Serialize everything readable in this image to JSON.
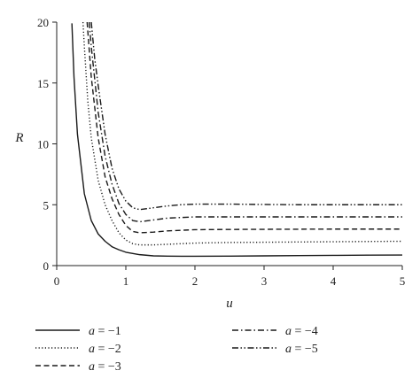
{
  "chart_data": {
    "type": "line",
    "xlabel": "u",
    "ylabel": "R",
    "xlim": [
      0,
      5
    ],
    "ylim": [
      0,
      20
    ],
    "xticks": [
      "0",
      "1",
      "2",
      "3",
      "4",
      "5"
    ],
    "yticks": [
      "0",
      "5",
      "10",
      "15",
      "20"
    ],
    "grid": false,
    "legend_position": "bottom",
    "series": [
      {
        "name": "a = −1",
        "dash": "solid",
        "x": [
          0.22,
          0.25,
          0.3,
          0.4,
          0.5,
          0.6,
          0.7,
          0.8,
          0.9,
          1.0,
          1.2,
          1.4,
          1.6,
          1.8,
          2.0,
          2.5,
          3.0,
          3.5,
          4.0,
          4.5,
          5.0
        ],
        "y": [
          19.9,
          15.5,
          10.8,
          5.9,
          3.7,
          2.6,
          2.0,
          1.55,
          1.3,
          1.1,
          0.9,
          0.8,
          0.78,
          0.77,
          0.77,
          0.78,
          0.8,
          0.82,
          0.84,
          0.86,
          0.87
        ]
      },
      {
        "name": "a = −2",
        "dash": "dotted",
        "x": [
          0.38,
          0.4,
          0.45,
          0.5,
          0.6,
          0.7,
          0.8,
          0.9,
          1.0,
          1.1,
          1.2,
          1.4,
          1.6,
          1.8,
          2.0,
          2.5,
          3.0,
          3.5,
          4.0,
          4.5,
          5.0
        ],
        "y": [
          20.0,
          18.0,
          13.5,
          10.5,
          7.0,
          5.0,
          3.7,
          2.7,
          2.1,
          1.8,
          1.7,
          1.7,
          1.75,
          1.8,
          1.85,
          1.9,
          1.92,
          1.94,
          1.96,
          1.98,
          2.0
        ]
      },
      {
        "name": "a = −3",
        "dash": "dashed",
        "x": [
          0.44,
          0.5,
          0.6,
          0.7,
          0.8,
          0.9,
          1.0,
          1.1,
          1.2,
          1.4,
          1.6,
          1.8,
          2.0,
          2.5,
          3.0,
          3.5,
          4.0,
          4.5,
          5.0
        ],
        "y": [
          20.0,
          15.5,
          10.5,
          7.3,
          5.5,
          4.2,
          3.3,
          2.8,
          2.7,
          2.75,
          2.85,
          2.9,
          2.95,
          2.97,
          2.98,
          2.99,
          3.0,
          3.0,
          3.0
        ]
      },
      {
        "name": "a = −4",
        "dash": "dash-dot",
        "x": [
          0.47,
          0.5,
          0.6,
          0.7,
          0.8,
          0.9,
          1.0,
          1.1,
          1.2,
          1.4,
          1.6,
          1.8,
          2.0,
          2.5,
          3.0,
          3.5,
          4.0,
          4.5,
          5.0
        ],
        "y": [
          20.0,
          18.0,
          12.6,
          9.0,
          6.7,
          5.1,
          4.2,
          3.7,
          3.6,
          3.75,
          3.9,
          3.95,
          4.0,
          4.0,
          4.0,
          4.0,
          4.0,
          4.0,
          4.0
        ]
      },
      {
        "name": "a = −5",
        "dash": "dash-dot-dot",
        "x": [
          0.5,
          0.55,
          0.6,
          0.7,
          0.8,
          0.9,
          1.0,
          1.1,
          1.2,
          1.4,
          1.6,
          1.8,
          2.0,
          2.5,
          3.0,
          3.5,
          4.0,
          4.5,
          5.0
        ],
        "y": [
          20.0,
          17.0,
          14.8,
          10.8,
          8.0,
          6.3,
          5.3,
          4.75,
          4.6,
          4.75,
          4.9,
          5.0,
          5.05,
          5.05,
          5.02,
          5.0,
          5.0,
          5.0,
          5.0
        ]
      }
    ]
  }
}
